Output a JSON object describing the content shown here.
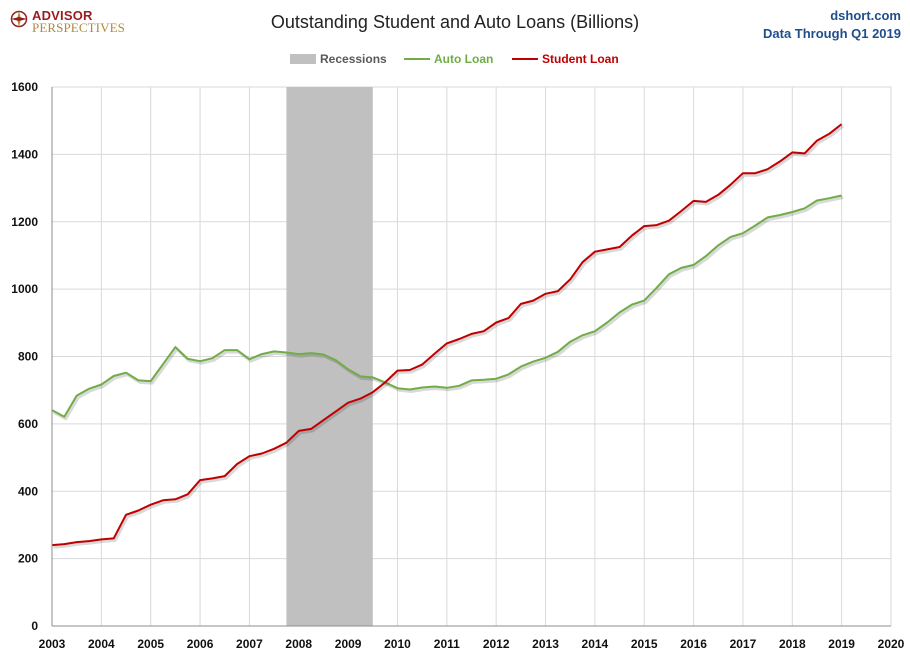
{
  "header": {
    "logo_line1": "ADVISOR",
    "logo_line2": "PERSPECTIVES",
    "title": "Outstanding Student and Auto Loans (Billions)",
    "source_line1": "dshort.com",
    "source_line2": "Data Through Q1 2019"
  },
  "legend": {
    "recessions_label": "Recessions",
    "auto_label": "Auto Loan",
    "student_label": "Student Loan"
  },
  "colors": {
    "recession": "#c0c0c0",
    "auto": "#70ad47",
    "student": "#c00000",
    "legend_text": "#595959",
    "grid": "#d9d9d9"
  },
  "chart_data": {
    "type": "line",
    "title": "Outstanding Student and Auto Loans (Billions)",
    "xlim": [
      2003,
      2020
    ],
    "ylim": [
      0,
      1600
    ],
    "x_ticks": [
      "2003",
      "2004",
      "2005",
      "2006",
      "2007",
      "2008",
      "2009",
      "2010",
      "2011",
      "2012",
      "2013",
      "2014",
      "2015",
      "2016",
      "2017",
      "2018",
      "2019",
      "2020"
    ],
    "y_ticks": [
      "0",
      "200",
      "400",
      "600",
      "800",
      "1000",
      "1200",
      "1400",
      "1600"
    ],
    "grid": true,
    "legend_position": "top-center",
    "recessions": [
      [
        2007.75,
        2009.5
      ]
    ],
    "x": [
      2003.0,
      2003.25,
      2003.5,
      2003.75,
      2004.0,
      2004.25,
      2004.5,
      2004.75,
      2005.0,
      2005.25,
      2005.5,
      2005.75,
      2006.0,
      2006.25,
      2006.5,
      2006.75,
      2007.0,
      2007.25,
      2007.5,
      2007.75,
      2008.0,
      2008.25,
      2008.5,
      2008.75,
      2009.0,
      2009.25,
      2009.5,
      2009.75,
      2010.0,
      2010.25,
      2010.5,
      2010.75,
      2011.0,
      2011.25,
      2011.5,
      2011.75,
      2012.0,
      2012.25,
      2012.5,
      2012.75,
      2013.0,
      2013.25,
      2013.5,
      2013.75,
      2014.0,
      2014.25,
      2014.5,
      2014.75,
      2015.0,
      2015.25,
      2015.5,
      2015.75,
      2016.0,
      2016.25,
      2016.5,
      2016.75,
      2017.0,
      2017.25,
      2017.5,
      2017.75,
      2018.0,
      2018.25,
      2018.5,
      2018.75,
      2019.0
    ],
    "series": [
      {
        "name": "Auto Loan",
        "values": [
          641,
          621,
          684,
          704,
          717,
          742,
          752,
          729,
          727,
          777,
          828,
          793,
          786,
          795,
          819,
          819,
          792,
          807,
          815,
          812,
          807,
          810,
          806,
          789,
          762,
          741,
          738,
          723,
          706,
          702,
          708,
          711,
          707,
          713,
          729,
          731,
          734,
          747,
          770,
          785,
          796,
          814,
          844,
          863,
          875,
          901,
          931,
          954,
          966,
          1004,
          1044,
          1063,
          1072,
          1098,
          1130,
          1155,
          1166,
          1189,
          1213,
          1220,
          1229,
          1240,
          1263,
          1270,
          1278
        ]
      },
      {
        "name": "Student Loan",
        "values": [
          240,
          243,
          249,
          252,
          257,
          260,
          330,
          343,
          360,
          373,
          376,
          391,
          433,
          438,
          445,
          481,
          504,
          512,
          526,
          544,
          579,
          585,
          611,
          637,
          663,
          675,
          694,
          723,
          758,
          760,
          776,
          808,
          839,
          852,
          867,
          875,
          901,
          914,
          956,
          966,
          986,
          994,
          1029,
          1080,
          1111,
          1118,
          1125,
          1159,
          1187,
          1190,
          1203,
          1232,
          1262,
          1259,
          1280,
          1310,
          1344,
          1344,
          1356,
          1379,
          1406,
          1403,
          1441,
          1461,
          1490
        ]
      }
    ]
  }
}
